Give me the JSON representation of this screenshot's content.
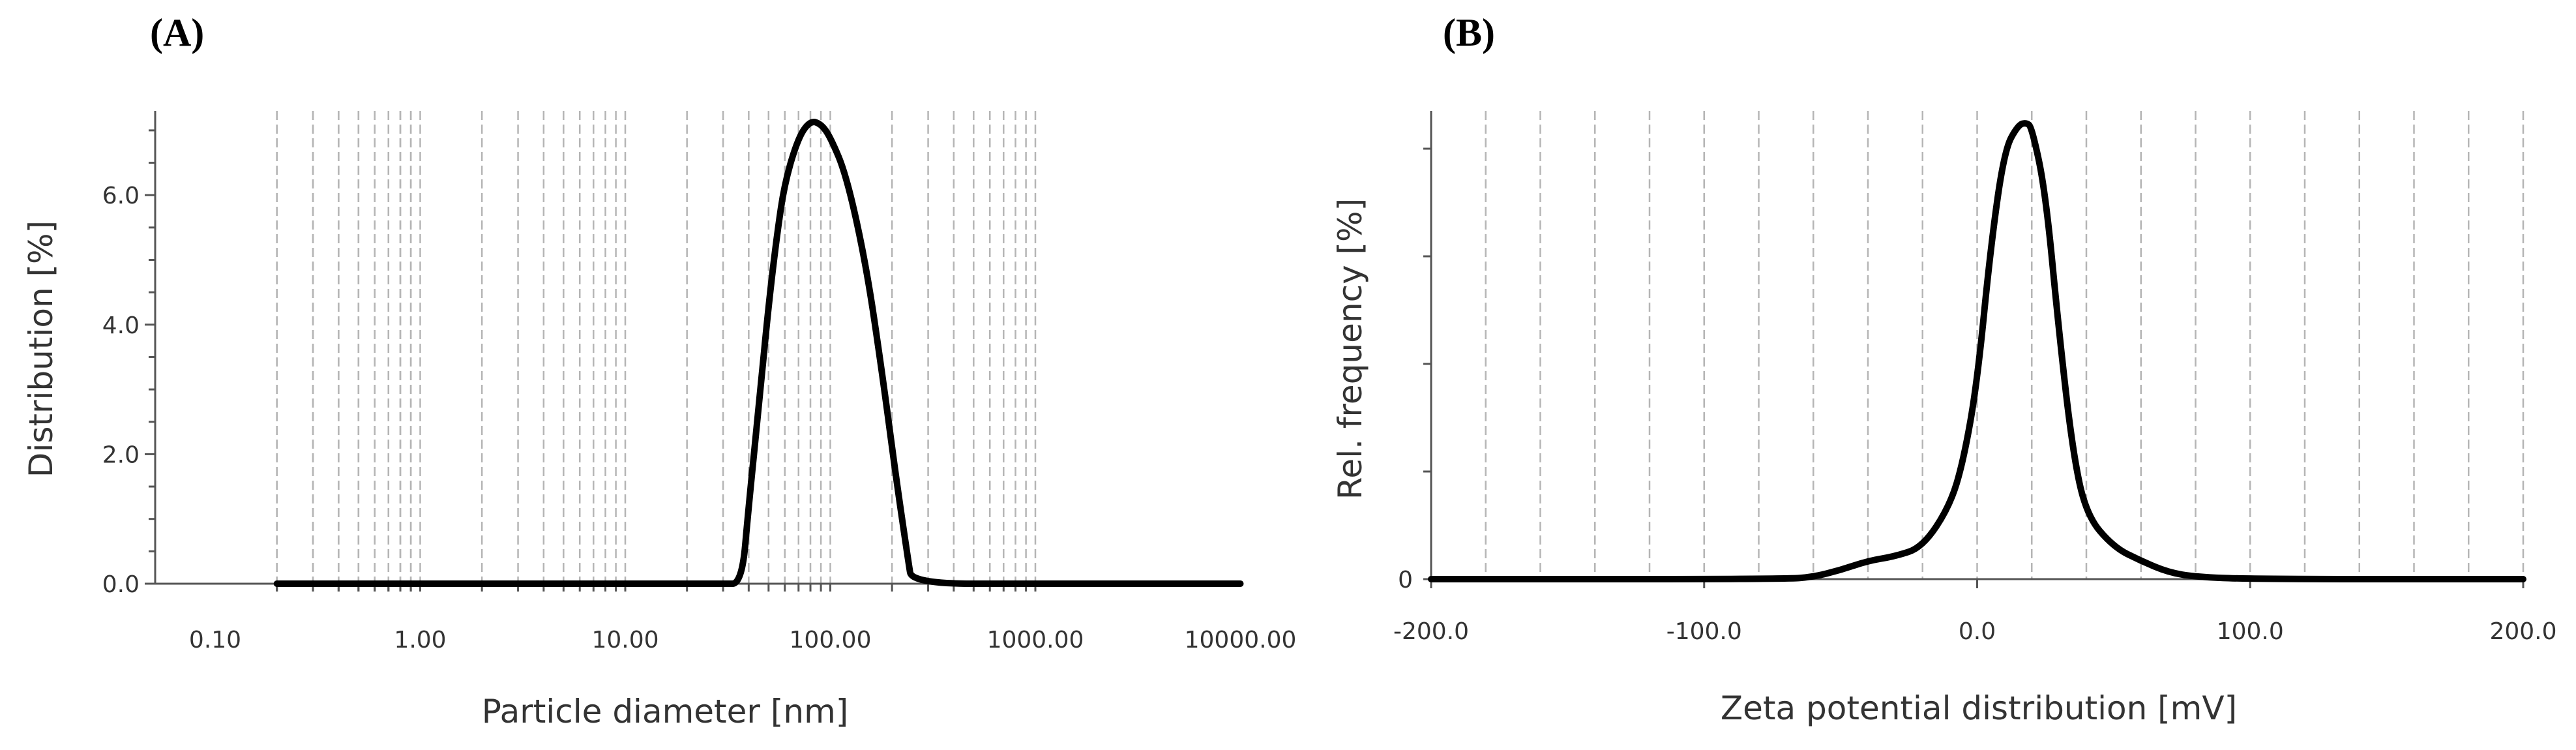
{
  "chart_data": [
    {
      "type": "line",
      "panel_label": "(A)",
      "xlabel": "Particle diameter [nm]",
      "ylabel": "Distribution [%]",
      "x_scale": "log",
      "xlim": [
        0.1,
        10000
      ],
      "ylim": [
        0,
        7.2
      ],
      "x_tick_labels": [
        "0.10",
        "1.00",
        "10.00",
        "100.00",
        "1000.00",
        "10000.00"
      ],
      "x_ticks": [
        0.1,
        1,
        10,
        100,
        1000,
        10000
      ],
      "y_tick_labels": [
        "0.0",
        "2.0",
        "4.0",
        "6.0"
      ],
      "y_ticks": [
        0,
        2,
        4,
        6
      ],
      "grid": "vertical dashed",
      "x": [
        0.2,
        1,
        10,
        30,
        37,
        40,
        45,
        50,
        55,
        60,
        70,
        80,
        90,
        100,
        120,
        150,
        180,
        210,
        240,
        250,
        1000,
        10000
      ],
      "y": [
        0.0,
        0.0,
        0.0,
        0.0,
        0.0,
        1.2,
        2.8,
        4.3,
        5.4,
        6.2,
        6.9,
        7.15,
        7.1,
        6.9,
        6.3,
        4.9,
        3.2,
        1.6,
        0.35,
        0.0,
        0.0,
        0.0
      ]
    },
    {
      "type": "line",
      "panel_label": "(B)",
      "xlabel": "Zeta potential distribution [mV]",
      "ylabel": "Rel. frequency [%]",
      "xlim": [
        -200,
        200
      ],
      "ylim": [
        0,
        100
      ],
      "x_tick_labels": [
        "-200.0",
        "-100.0",
        "0.0",
        "100.0",
        "200.0"
      ],
      "x_ticks": [
        -200,
        -100,
        0,
        100,
        200
      ],
      "y_tick_labels": [
        "0"
      ],
      "y_ticks": [
        0
      ],
      "grid": "vertical dashed",
      "x": [
        -200,
        -70,
        -60,
        -50,
        -40,
        -30,
        -20,
        -10,
        -5,
        0,
        5,
        10,
        15,
        18,
        20,
        25,
        30,
        35,
        40,
        50,
        60,
        70,
        80,
        100,
        200
      ],
      "y": [
        0,
        0,
        0.5,
        2,
        4,
        5,
        7,
        16,
        26,
        43,
        73,
        94,
        99.5,
        100,
        99,
        85,
        54,
        28,
        14,
        7,
        4,
        1.5,
        0.5,
        0,
        0
      ]
    }
  ]
}
